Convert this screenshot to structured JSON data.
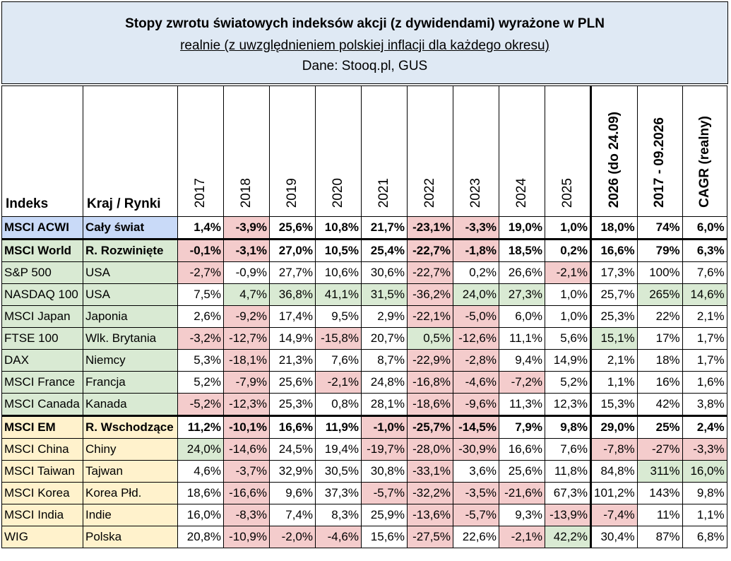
{
  "title": {
    "line1": "Stopy zwrotu światowych indeksów akcji (z dywidendami) wyrażone w PLN",
    "line2": "realnie (z uwzględnieniem polskiej inflacji dla każdego okresu)",
    "line3": "Dane: Stooq.pl, GUS"
  },
  "header": {
    "index": "Indeks",
    "country": "Kraj / Rynki",
    "periods": [
      "2017",
      "2018",
      "2019",
      "2020",
      "2021",
      "2022",
      "2023",
      "2024",
      "2025",
      "2026 (do 24.09)",
      "2017 - 09.2026",
      "CAGR (realny)"
    ]
  },
  "colors": {
    "acwi_label": "#c9daf8",
    "developed_label": "#d9ead3",
    "emerging_label": "#fff2cc",
    "negative_cell": "#f4cccc",
    "positive_cell": "#d9ead3",
    "neutral_cell": "#ffffff"
  },
  "rows": [
    {
      "name": "MSCI ACWI",
      "country": "Cały świat",
      "group": "acwi",
      "values": [
        "1,4%",
        "-3,9%",
        "25,6%",
        "10,8%",
        "21,7%",
        "-23,1%",
        "-3,3%",
        "19,0%",
        "1,0%",
        "18,0%",
        "74%",
        "6,0%"
      ],
      "hl": [
        "",
        "r",
        "",
        "",
        "",
        "r",
        "r",
        "",
        "",
        "",
        "",
        ""
      ]
    },
    {
      "name": "MSCI World",
      "country": "R. Rozwinięte",
      "group": "dev",
      "bold": true,
      "values": [
        "-0,1%",
        "-3,1%",
        "27,0%",
        "10,5%",
        "25,4%",
        "-22,7%",
        "-1,8%",
        "18,5%",
        "0,2%",
        "16,6%",
        "79%",
        "6,3%"
      ],
      "hl": [
        "r",
        "r",
        "",
        "",
        "",
        "r",
        "r",
        "",
        "",
        "",
        "",
        ""
      ]
    },
    {
      "name": "S&P 500",
      "country": "USA",
      "group": "dev",
      "values": [
        "-2,7%",
        "-0,9%",
        "27,7%",
        "10,6%",
        "30,6%",
        "-22,7%",
        "0,2%",
        "26,6%",
        "-2,1%",
        "17,3%",
        "100%",
        "7,6%"
      ],
      "hl": [
        "r",
        "",
        "",
        "",
        "",
        "r",
        "",
        "",
        "r",
        "",
        "",
        ""
      ]
    },
    {
      "name": "NASDAQ 100",
      "country": "USA",
      "group": "dev",
      "values": [
        "7,5%",
        "4,7%",
        "36,8%",
        "41,1%",
        "31,5%",
        "-36,2%",
        "24,0%",
        "27,3%",
        "1,0%",
        "25,7%",
        "265%",
        "14,6%"
      ],
      "hl": [
        "",
        "g",
        "g",
        "g",
        "g",
        "r",
        "g",
        "g",
        "",
        "",
        "g",
        "g"
      ]
    },
    {
      "name": "MSCI Japan",
      "country": "Japonia",
      "group": "dev",
      "values": [
        "2,6%",
        "-9,2%",
        "17,4%",
        "9,5%",
        "2,9%",
        "-22,1%",
        "-5,0%",
        "6,0%",
        "1,0%",
        "25,3%",
        "22%",
        "2,1%"
      ],
      "hl": [
        "",
        "r",
        "",
        "",
        "",
        "r",
        "r",
        "",
        "",
        "",
        "",
        ""
      ]
    },
    {
      "name": "FTSE 100",
      "country": "Wlk. Brytania",
      "group": "dev",
      "values": [
        "-3,2%",
        "-12,7%",
        "14,9%",
        "-15,8%",
        "20,7%",
        "0,5%",
        "-12,6%",
        "11,1%",
        "5,6%",
        "15,1%",
        "17%",
        "1,7%"
      ],
      "hl": [
        "r",
        "r",
        "",
        "r",
        "",
        "g",
        "r",
        "",
        "",
        "g",
        "",
        ""
      ]
    },
    {
      "name": "DAX",
      "country": "Niemcy",
      "group": "dev",
      "values": [
        "5,3%",
        "-18,1%",
        "21,3%",
        "7,6%",
        "8,7%",
        "-22,9%",
        "-2,8%",
        "9,4%",
        "14,9%",
        "2,1%",
        "18%",
        "1,7%"
      ],
      "hl": [
        "",
        "r",
        "",
        "",
        "",
        "r",
        "r",
        "",
        "",
        "",
        "",
        ""
      ]
    },
    {
      "name": "MSCI France",
      "country": "Francja",
      "group": "dev",
      "values": [
        "5,2%",
        "-7,9%",
        "25,6%",
        "-2,1%",
        "24,8%",
        "-16,8%",
        "-4,6%",
        "-7,2%",
        "5,2%",
        "1,1%",
        "16%",
        "1,6%"
      ],
      "hl": [
        "",
        "r",
        "",
        "r",
        "",
        "r",
        "r",
        "r",
        "",
        "",
        "",
        ""
      ]
    },
    {
      "name": "MSCI Canada",
      "country": "Kanada",
      "group": "dev",
      "values": [
        "-5,2%",
        "-12,3%",
        "25,3%",
        "0,8%",
        "28,1%",
        "-18,6%",
        "-9,6%",
        "11,3%",
        "12,3%",
        "15,3%",
        "42%",
        "3,8%"
      ],
      "hl": [
        "r",
        "r",
        "",
        "",
        "",
        "r",
        "r",
        "",
        "",
        "",
        "",
        ""
      ]
    },
    {
      "name": "MSCI EM",
      "country": "R. Wschodzące",
      "group": "em",
      "bold": true,
      "values": [
        "11,2%",
        "-10,1%",
        "16,6%",
        "11,9%",
        "-1,0%",
        "-25,7%",
        "-14,5%",
        "7,9%",
        "9,8%",
        "29,0%",
        "25%",
        "2,4%"
      ],
      "hl": [
        "",
        "r",
        "",
        "",
        "r",
        "r",
        "r",
        "",
        "",
        "",
        "",
        ""
      ]
    },
    {
      "name": "MSCI China",
      "country": "Chiny",
      "group": "em",
      "values": [
        "24,0%",
        "-14,6%",
        "24,5%",
        "19,4%",
        "-19,7%",
        "-28,0%",
        "-30,9%",
        "16,6%",
        "7,6%",
        "-7,8%",
        "-27%",
        "-3,3%"
      ],
      "hl": [
        "g",
        "r",
        "",
        "",
        "r",
        "r",
        "r",
        "",
        "",
        "r",
        "r",
        "r"
      ]
    },
    {
      "name": "MSCI Taiwan",
      "country": "Tajwan",
      "group": "em",
      "values": [
        "4,6%",
        "-3,7%",
        "32,9%",
        "30,5%",
        "30,8%",
        "-33,1%",
        "3,6%",
        "25,6%",
        "11,8%",
        "84,8%",
        "311%",
        "16,0%"
      ],
      "hl": [
        "",
        "r",
        "",
        "",
        "",
        "r",
        "",
        "",
        "",
        "",
        "g",
        "g"
      ]
    },
    {
      "name": "MSCI Korea",
      "country": "Korea Płd.",
      "group": "em",
      "values": [
        "18,6%",
        "-16,6%",
        "9,6%",
        "37,3%",
        "-5,7%",
        "-32,2%",
        "-3,5%",
        "-21,6%",
        "67,3%",
        "101,2%",
        "143%",
        "9,8%"
      ],
      "hl": [
        "",
        "r",
        "",
        "",
        "r",
        "r",
        "r",
        "r",
        "",
        "",
        "",
        ""
      ]
    },
    {
      "name": "MSCI India",
      "country": "Indie",
      "group": "em",
      "values": [
        "16,0%",
        "-8,3%",
        "7,4%",
        "8,3%",
        "25,9%",
        "-13,6%",
        "-5,7%",
        "9,3%",
        "-13,9%",
        "-7,4%",
        "11%",
        "1,1%"
      ],
      "hl": [
        "",
        "r",
        "",
        "",
        "",
        "r",
        "r",
        "",
        "r",
        "r",
        "",
        ""
      ]
    },
    {
      "name": "WIG",
      "country": "Polska",
      "group": "em",
      "values": [
        "20,8%",
        "-10,9%",
        "-2,0%",
        "-4,6%",
        "15,6%",
        "-27,5%",
        "22,6%",
        "-2,1%",
        "42,2%",
        "30,4%",
        "87%",
        "6,8%"
      ],
      "hl": [
        "",
        "r",
        "r",
        "r",
        "",
        "r",
        "",
        "r",
        "g",
        "",
        "",
        ""
      ]
    }
  ]
}
